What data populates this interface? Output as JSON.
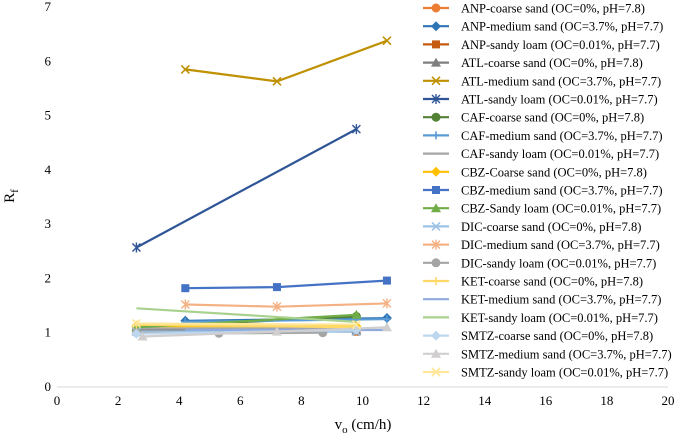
{
  "chart_data": {
    "type": "line",
    "title": "",
    "xlabel": "v",
    "xlabel_sub": "o",
    "xlabel_unit": " (cm/h)",
    "ylabel": "R",
    "ylabel_sub": "f",
    "xlim": [
      0,
      20
    ],
    "ylim": [
      0,
      7
    ],
    "x_ticks": [
      0,
      2,
      4,
      6,
      8,
      10,
      12,
      14,
      16,
      18,
      20
    ],
    "y_ticks": [
      0,
      1,
      2,
      3,
      4,
      5,
      6,
      7
    ],
    "grid": false,
    "legend_position": "right",
    "series": [
      {
        "name": "ANP-coarse sand (OC=0%, pH=7.8)",
        "color": "#ED7D31",
        "marker": "circle",
        "x": [
          2.6,
          9.8
        ],
        "y": [
          1.05,
          1.05
        ]
      },
      {
        "name": "ANP-medium sand (OC=3.7%, pH=7.7)",
        "color": "#2E75B6",
        "marker": "diamond",
        "x": [
          4.2,
          10.8
        ],
        "y": [
          1.22,
          1.27
        ]
      },
      {
        "name": "ANP-sandy loam (OC=0.01%, pH=7.7)",
        "color": "#C55A11",
        "marker": "square",
        "x": [
          2.6,
          9.8
        ],
        "y": [
          1.07,
          1.02
        ]
      },
      {
        "name": "ATL-coarse sand (OC=0%, pH=7.8)",
        "color": "#7F7F7F",
        "marker": "triangle",
        "x": [
          2.6,
          9.8
        ],
        "y": [
          1.04,
          1.04
        ]
      },
      {
        "name": "ATL-medium sand (OC=3.7%, pH=7.7)",
        "color": "#BF9000",
        "marker": "x",
        "x": [
          4.2,
          7.2,
          10.8
        ],
        "y": [
          5.85,
          5.63,
          6.38
        ]
      },
      {
        "name": "ATL-sandy loam (OC=0.01%, pH=7.7)",
        "color": "#2F5597",
        "marker": "star",
        "x": [
          2.6,
          9.8
        ],
        "y": [
          2.57,
          4.75
        ]
      },
      {
        "name": "CAF-coarse sand (OC=0%, pH=7.8)",
        "color": "#548235",
        "marker": "circle",
        "x": [
          2.6,
          9.8
        ],
        "y": [
          1.1,
          1.3
        ]
      },
      {
        "name": "CAF-medium sand (OC=3.7%, pH=7.7)",
        "color": "#5B9BD5",
        "marker": "plus",
        "x": [
          4.2,
          10.8
        ],
        "y": [
          1.2,
          1.25
        ]
      },
      {
        "name": "CAF-sandy loam (OC=0.01%, pH=7.7)",
        "color": "#A5A5A5",
        "marker": "none",
        "x": [
          2.6,
          9.8
        ],
        "y": [
          1.08,
          1.08
        ]
      },
      {
        "name": "CBZ-Coarse sand (OC=0%, pH=7.8)",
        "color": "#FFC000",
        "marker": "diamond",
        "x": [
          2.6,
          9.8
        ],
        "y": [
          1.12,
          1.12
        ]
      },
      {
        "name": "CBZ-medium sand (OC=3.7%, pH=7.7)",
        "color": "#4472C4",
        "marker": "square",
        "x": [
          4.2,
          7.2,
          10.8
        ],
        "y": [
          1.82,
          1.84,
          1.96
        ]
      },
      {
        "name": "CBZ-Sandy loam (OC=0.01%, pH=7.7)",
        "color": "#70AD47",
        "marker": "triangle",
        "x": [
          2.6,
          9.8
        ],
        "y": [
          1.1,
          1.33
        ]
      },
      {
        "name": "DIC-coarse sand (OC=0%, pH=7.8)",
        "color": "#9DC3E6",
        "marker": "x",
        "x": [
          2.6,
          9.8
        ],
        "y": [
          1.02,
          1.02
        ]
      },
      {
        "name": "DIC-medium sand (OC=3.7%, pH=7.7)",
        "color": "#F4B183",
        "marker": "star",
        "x": [
          4.2,
          7.2,
          10.8
        ],
        "y": [
          1.52,
          1.48,
          1.54
        ]
      },
      {
        "name": "DIC-sandy loam (OC=0.01%, pH=7.7)",
        "color": "#A5A5A5",
        "marker": "circle",
        "x": [
          2.6,
          5.3,
          8.7
        ],
        "y": [
          1.0,
          0.99,
          1.0
        ]
      },
      {
        "name": "KET-coarse sand (OC=0%, pH=7.8)",
        "color": "#FFD966",
        "marker": "plus",
        "x": [
          2.6,
          9.8
        ],
        "y": [
          1.15,
          1.1
        ]
      },
      {
        "name": "KET-medium sand (OC=3.7%, pH=7.7)",
        "color": "#8FAADC",
        "marker": "none",
        "x": [
          4.2,
          10.8
        ],
        "y": [
          1.05,
          1.05
        ]
      },
      {
        "name": "KET-sandy loam (OC=0.01%, pH=7.7)",
        "color": "#A9D18E",
        "marker": "none",
        "x": [
          2.6,
          9.8
        ],
        "y": [
          1.45,
          1.2
        ]
      },
      {
        "name": "SMTZ-coarse sand (OC=0%, pH=7.8)",
        "color": "#BDD7EE",
        "marker": "diamond",
        "x": [
          2.6,
          9.8
        ],
        "y": [
          0.98,
          1.05
        ]
      },
      {
        "name": "SMTZ-medium sand (OC=3.7%, pH=7.7)",
        "color": "#D0CECE",
        "marker": "triangle",
        "x": [
          2.8,
          7.2,
          10.8
        ],
        "y": [
          0.93,
          1.02,
          1.1
        ]
      },
      {
        "name": "SMTZ-sandy loam (OC=0.01%, pH=7.7)",
        "color": "#FFE699",
        "marker": "x",
        "x": [
          2.6,
          9.8
        ],
        "y": [
          1.17,
          1.15
        ]
      }
    ]
  }
}
